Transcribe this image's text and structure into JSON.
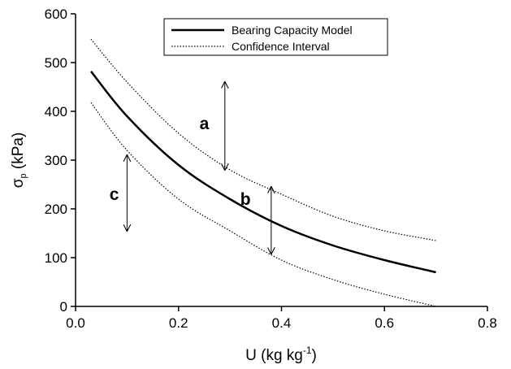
{
  "chart_data": {
    "type": "line",
    "title": "",
    "xlabel": "U (kg kg-1)",
    "xlabel_parts": {
      "main": "U (kg kg",
      "sup": "-1",
      "close": ")"
    },
    "ylabel": "σp (kPa)",
    "ylabel_parts": {
      "main": "σ",
      "sub": "p",
      "rest": " (kPa)"
    },
    "xlim": [
      0.0,
      0.8
    ],
    "ylim": [
      0,
      600
    ],
    "xticks": [
      0.0,
      0.2,
      0.4,
      0.6,
      0.8
    ],
    "xtick_labels": [
      "0.0",
      "0.2",
      "0.4",
      "0.6",
      "0.8"
    ],
    "yticks": [
      0,
      100,
      200,
      300,
      400,
      500,
      600
    ],
    "ytick_labels": [
      "0",
      "100",
      "200",
      "300",
      "400",
      "500",
      "600"
    ],
    "grid": false,
    "legend_position": "top-center",
    "series": [
      {
        "name": "Bearing Capacity Model",
        "style": "solid",
        "x": [
          0.03,
          0.1,
          0.2,
          0.3,
          0.4,
          0.5,
          0.6,
          0.7
        ],
        "y": [
          482,
          390,
          290,
          220,
          165,
          125,
          95,
          70
        ]
      },
      {
        "name": "Confidence Interval",
        "style": "dotted",
        "x": [
          0.03,
          0.1,
          0.2,
          0.3,
          0.4,
          0.5,
          0.6,
          0.7
        ],
        "y": [
          548,
          460,
          355,
          280,
          230,
          185,
          155,
          135
        ]
      },
      {
        "style": "dotted",
        "x": [
          0.03,
          0.1,
          0.2,
          0.3,
          0.4,
          0.5,
          0.6,
          0.7
        ],
        "y": [
          418,
          320,
          220,
          155,
          95,
          55,
          25,
          0
        ]
      }
    ],
    "annotations": [
      {
        "label": "a",
        "text_x": 0.25,
        "text_y": 375,
        "arrow_x": 0.29,
        "arrow_y": [
          280,
          460
        ]
      },
      {
        "label": "b",
        "text_x": 0.33,
        "text_y": 220,
        "arrow_x": 0.38,
        "arrow_y": [
          108,
          245
        ]
      },
      {
        "label": "c",
        "text_x": 0.075,
        "text_y": 230,
        "arrow_x": 0.1,
        "arrow_y": [
          155,
          310
        ]
      }
    ]
  }
}
